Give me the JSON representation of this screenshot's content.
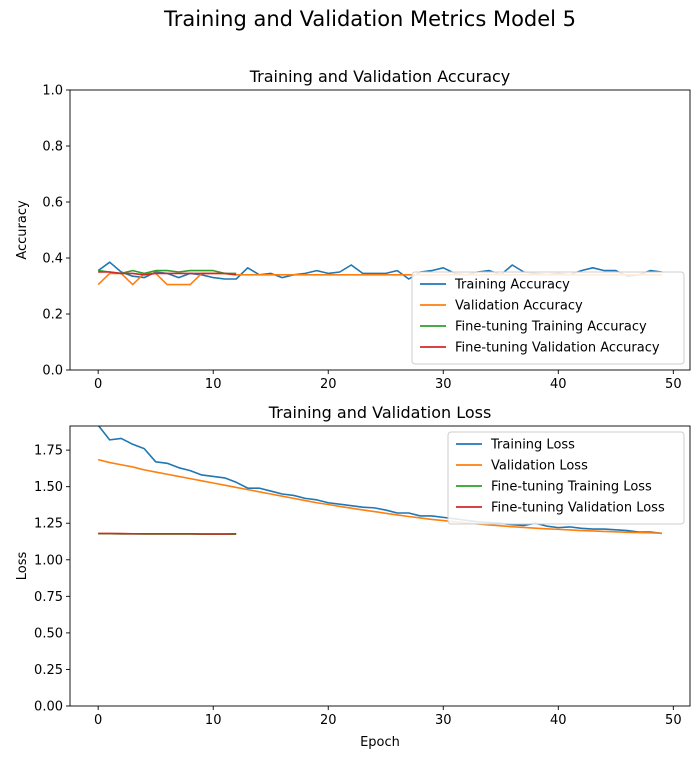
{
  "figure": {
    "suptitle": "Training and Validation Metrics Model 5"
  },
  "chart_data": [
    {
      "type": "line",
      "title": "Training and Validation Accuracy",
      "xlabel": "",
      "ylabel": "Accuracy",
      "xlim": [
        -2.45,
        51.45
      ],
      "ylim": [
        0.0,
        1.0
      ],
      "xticks": [
        0,
        10,
        20,
        30,
        40,
        50
      ],
      "yticks": [
        0.0,
        0.2,
        0.4,
        0.6,
        0.8,
        1.0
      ],
      "ytick_decimals": 1,
      "legend_position": "lower-right",
      "grid": false,
      "series": [
        {
          "name": "Training Accuracy",
          "color": "#1f77b4",
          "x": [
            0,
            1,
            2,
            3,
            4,
            5,
            6,
            7,
            8,
            9,
            10,
            11,
            12,
            13,
            14,
            15,
            16,
            17,
            18,
            19,
            20,
            21,
            22,
            23,
            24,
            25,
            26,
            27,
            28,
            29,
            30,
            31,
            32,
            33,
            34,
            35,
            36,
            37,
            38,
            39,
            40,
            41,
            42,
            43,
            44,
            45,
            46,
            47,
            48,
            49
          ],
          "y": [
            0.355,
            0.385,
            0.35,
            0.335,
            0.33,
            0.35,
            0.345,
            0.33,
            0.345,
            0.34,
            0.33,
            0.325,
            0.325,
            0.365,
            0.34,
            0.345,
            0.33,
            0.34,
            0.345,
            0.355,
            0.345,
            0.35,
            0.375,
            0.345,
            0.345,
            0.345,
            0.355,
            0.325,
            0.35,
            0.355,
            0.365,
            0.345,
            0.34,
            0.35,
            0.355,
            0.34,
            0.375,
            0.35,
            0.345,
            0.34,
            0.345,
            0.34,
            0.355,
            0.365,
            0.355,
            0.355,
            0.335,
            0.34,
            0.355,
            0.35
          ]
        },
        {
          "name": "Validation Accuracy",
          "color": "#ff7f0e",
          "x": [
            0,
            1,
            2,
            3,
            4,
            5,
            6,
            7,
            8,
            9,
            10,
            11,
            12,
            13,
            14,
            15,
            16,
            17,
            18,
            19,
            20,
            21,
            22,
            23,
            24,
            25,
            26,
            27,
            28,
            29,
            30,
            31,
            32,
            33,
            34,
            35,
            36,
            37,
            38,
            39,
            40,
            41,
            42,
            43,
            44,
            45,
            46,
            47,
            48,
            49
          ],
          "y": [
            0.305,
            0.345,
            0.345,
            0.305,
            0.345,
            0.345,
            0.305,
            0.305,
            0.305,
            0.345,
            0.345,
            0.345,
            0.34,
            0.34,
            0.34,
            0.34,
            0.34,
            0.34,
            0.34,
            0.34,
            0.34,
            0.34,
            0.34,
            0.34,
            0.34,
            0.34,
            0.34,
            0.34,
            0.34,
            0.34,
            0.34,
            0.34,
            0.34,
            0.34,
            0.34,
            0.34,
            0.34,
            0.34,
            0.34,
            0.34,
            0.34,
            0.34,
            0.34,
            0.34,
            0.34,
            0.34,
            0.34,
            0.34,
            0.34,
            0.34
          ]
        },
        {
          "name": "Fine-tuning Training Accuracy",
          "color": "#2ca02c",
          "x": [
            0,
            1,
            2,
            3,
            4,
            5,
            6,
            7,
            8,
            9,
            10,
            11,
            12
          ],
          "y": [
            0.355,
            0.35,
            0.345,
            0.355,
            0.345,
            0.355,
            0.355,
            0.35,
            0.355,
            0.355,
            0.355,
            0.345,
            0.345
          ]
        },
        {
          "name": "Fine-tuning Validation Accuracy",
          "color": "#d62728",
          "x": [
            0,
            1,
            2,
            3,
            4,
            5,
            6,
            7,
            8,
            9,
            10,
            11,
            12
          ],
          "y": [
            0.35,
            0.35,
            0.345,
            0.345,
            0.34,
            0.345,
            0.345,
            0.345,
            0.345,
            0.345,
            0.345,
            0.345,
            0.34
          ]
        }
      ]
    },
    {
      "type": "line",
      "title": "Training and Validation Loss",
      "xlabel": "Epoch",
      "ylabel": "Loss",
      "xlim": [
        -2.45,
        51.45
      ],
      "ylim": [
        0.0,
        1.915
      ],
      "xticks": [
        0,
        10,
        20,
        30,
        40,
        50
      ],
      "yticks": [
        0.0,
        0.25,
        0.5,
        0.75,
        1.0,
        1.25,
        1.5,
        1.75
      ],
      "ytick_decimals": 2,
      "legend_position": "upper-right",
      "grid": false,
      "series": [
        {
          "name": "Training Loss",
          "color": "#1f77b4",
          "x": [
            0,
            1,
            2,
            3,
            4,
            5,
            6,
            7,
            8,
            9,
            10,
            11,
            12,
            13,
            14,
            15,
            16,
            17,
            18,
            19,
            20,
            21,
            22,
            23,
            24,
            25,
            26,
            27,
            28,
            29,
            30,
            31,
            32,
            33,
            34,
            35,
            36,
            37,
            38,
            39,
            40,
            41,
            42,
            43,
            44,
            45,
            46,
            47,
            48,
            49
          ],
          "y": [
            1.92,
            1.82,
            1.83,
            1.79,
            1.76,
            1.67,
            1.66,
            1.63,
            1.61,
            1.58,
            1.57,
            1.56,
            1.53,
            1.49,
            1.49,
            1.47,
            1.45,
            1.44,
            1.42,
            1.41,
            1.39,
            1.38,
            1.37,
            1.36,
            1.355,
            1.34,
            1.32,
            1.32,
            1.3,
            1.3,
            1.29,
            1.28,
            1.27,
            1.26,
            1.255,
            1.25,
            1.24,
            1.235,
            1.25,
            1.23,
            1.22,
            1.225,
            1.215,
            1.21,
            1.21,
            1.205,
            1.2,
            1.19,
            1.19,
            1.18
          ]
        },
        {
          "name": "Validation Loss",
          "color": "#ff7f0e",
          "x": [
            0,
            1,
            2,
            3,
            4,
            5,
            6,
            7,
            8,
            9,
            10,
            11,
            12,
            13,
            14,
            15,
            16,
            17,
            18,
            19,
            20,
            21,
            22,
            23,
            24,
            25,
            26,
            27,
            28,
            29,
            30,
            31,
            32,
            33,
            34,
            35,
            36,
            37,
            38,
            39,
            40,
            41,
            42,
            43,
            44,
            45,
            46,
            47,
            48,
            49
          ],
          "y": [
            1.685,
            1.665,
            1.65,
            1.635,
            1.615,
            1.6,
            1.585,
            1.57,
            1.555,
            1.54,
            1.525,
            1.51,
            1.495,
            1.48,
            1.465,
            1.45,
            1.435,
            1.42,
            1.405,
            1.39,
            1.378,
            1.365,
            1.353,
            1.341,
            1.33,
            1.318,
            1.307,
            1.296,
            1.286,
            1.276,
            1.268,
            1.26,
            1.252,
            1.245,
            1.238,
            1.232,
            1.226,
            1.221,
            1.216,
            1.212,
            1.208,
            1.204,
            1.2,
            1.197,
            1.194,
            1.191,
            1.188,
            1.186,
            1.184,
            1.182
          ]
        },
        {
          "name": "Fine-tuning Training Loss",
          "color": "#2ca02c",
          "x": [
            0,
            1,
            2,
            3,
            4,
            5,
            6,
            7,
            8,
            9,
            10,
            11,
            12
          ],
          "y": [
            1.178,
            1.178,
            1.177,
            1.177,
            1.176,
            1.176,
            1.176,
            1.176,
            1.176,
            1.175,
            1.175,
            1.175,
            1.175
          ]
        },
        {
          "name": "Fine-tuning Validation Loss",
          "color": "#d62728",
          "x": [
            0,
            1,
            2,
            3,
            4,
            5,
            6,
            7,
            8,
            9,
            10,
            11,
            12
          ],
          "y": [
            1.18,
            1.18,
            1.179,
            1.178,
            1.178,
            1.178,
            1.178,
            1.178,
            1.178,
            1.177,
            1.177,
            1.177,
            1.178
          ]
        }
      ]
    }
  ]
}
